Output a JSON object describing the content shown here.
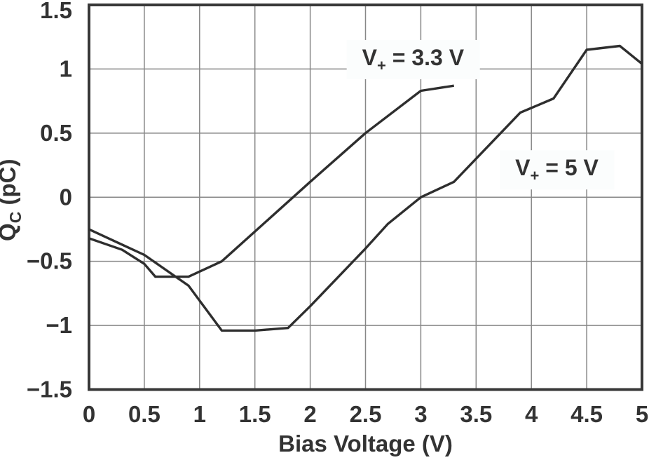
{
  "figure": {
    "background": "#ffffff"
  },
  "chart_data": {
    "type": "line",
    "title": "",
    "xlabel": "Bias Voltage (V)",
    "ylabel": {
      "base": "Q",
      "sub": "C",
      "rest": " (pC)",
      "plain": "QC (pC)"
    },
    "xlim": [
      0,
      5
    ],
    "ylim": [
      -1.5,
      1.5
    ],
    "grid": true,
    "legend_position": "inline-annotations",
    "xticks": [
      {
        "v": 0,
        "label": "0"
      },
      {
        "v": 0.5,
        "label": "0.5"
      },
      {
        "v": 1,
        "label": "1"
      },
      {
        "v": 1.5,
        "label": "1.5"
      },
      {
        "v": 2,
        "label": "2"
      },
      {
        "v": 2.5,
        "label": "2.5"
      },
      {
        "v": 3,
        "label": "3"
      },
      {
        "v": 3.5,
        "label": "3.5"
      },
      {
        "v": 4,
        "label": "4"
      },
      {
        "v": 4.5,
        "label": "4.5"
      },
      {
        "v": 5,
        "label": "5"
      }
    ],
    "yticks": [
      {
        "v": 1.5,
        "label": "1.5"
      },
      {
        "v": 1,
        "label": "1"
      },
      {
        "v": 0.5,
        "label": "0.5"
      },
      {
        "v": 0,
        "label": "0"
      },
      {
        "v": -0.5,
        "label": "−0.5"
      },
      {
        "v": -1,
        "label": "−1"
      },
      {
        "v": -1.5,
        "label": "−1.5"
      }
    ],
    "series": [
      {
        "name": "V+ = 3.3 V",
        "label": {
          "base": "V",
          "sub": "+",
          "rest": " = 3.3 V"
        },
        "points": [
          [
            0,
            -0.32
          ],
          [
            0.3,
            -0.41
          ],
          [
            0.5,
            -0.52
          ],
          [
            0.6,
            -0.62
          ],
          [
            0.9,
            -0.62
          ],
          [
            1.2,
            -0.5
          ],
          [
            1.6,
            -0.19
          ],
          [
            2.0,
            0.12
          ],
          [
            2.5,
            0.5
          ],
          [
            3.0,
            0.83
          ],
          [
            3.3,
            0.87
          ]
        ]
      },
      {
        "name": "V+ = 5 V",
        "label": {
          "base": "V",
          "sub": "+",
          "rest": " = 5 V"
        },
        "points": [
          [
            0,
            -0.25
          ],
          [
            0.3,
            -0.37
          ],
          [
            0.5,
            -0.45
          ],
          [
            0.9,
            -0.69
          ],
          [
            1.2,
            -1.04
          ],
          [
            1.5,
            -1.04
          ],
          [
            1.8,
            -1.02
          ],
          [
            2.0,
            -0.85
          ],
          [
            2.5,
            -0.4
          ],
          [
            2.7,
            -0.21
          ],
          [
            3.0,
            0.0
          ],
          [
            3.3,
            0.12
          ],
          [
            3.9,
            0.66
          ],
          [
            4.2,
            0.77
          ],
          [
            4.5,
            1.15
          ],
          [
            4.8,
            1.18
          ],
          [
            5.0,
            1.04
          ]
        ]
      }
    ],
    "annotations": [
      {
        "series": 0,
        "x": 2.93,
        "y": 1.09
      },
      {
        "series": 1,
        "x": 4.23,
        "y": 0.23
      }
    ],
    "colors": {
      "line": "#2e2e2e",
      "grid": "#878787",
      "frame": "#383838",
      "text": "#333333",
      "label_bg": "#fbfdfd",
      "background": "#ffffff"
    }
  }
}
